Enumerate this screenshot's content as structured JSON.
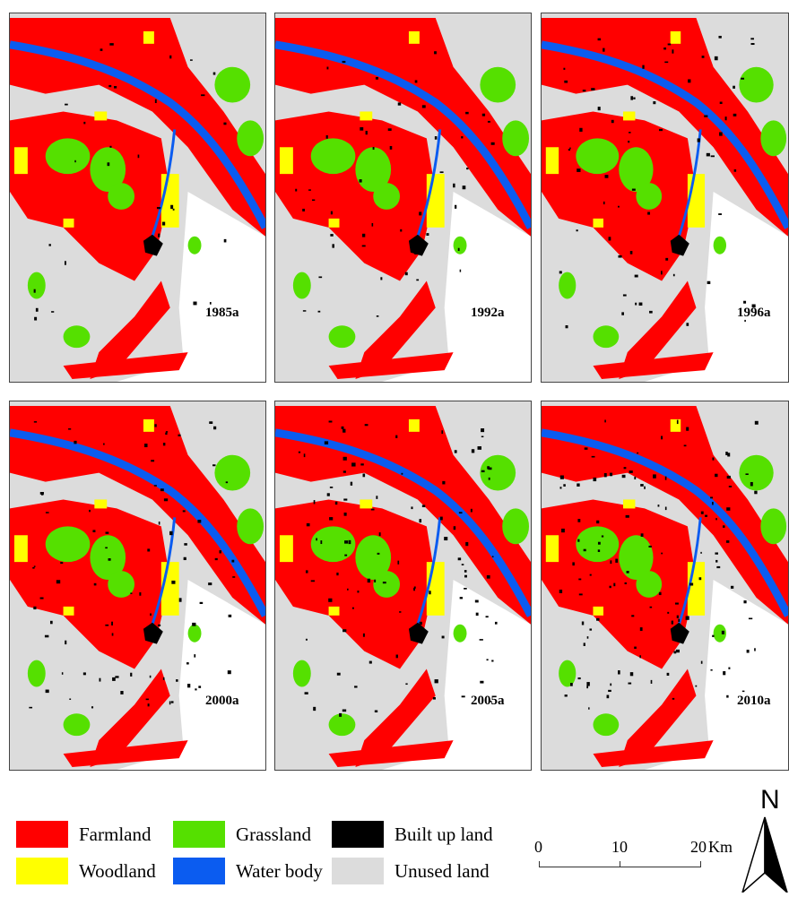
{
  "colors": {
    "farmland": "#ff0000",
    "woodland": "#ffff00",
    "grassland": "#55e000",
    "water_body": "#0b5cf0",
    "built_up_land": "#000000",
    "unused_land": "#dcdcdc"
  },
  "panels": [
    {
      "year": "1985a"
    },
    {
      "year": "1992a"
    },
    {
      "year": "1996a"
    },
    {
      "year": "2000a"
    },
    {
      "year": "2005a"
    },
    {
      "year": "2010a"
    }
  ],
  "legend": {
    "farmland": "Farmland",
    "woodland": "Woodland",
    "grassland": "Grassland",
    "water_body": "Water body",
    "built_up_land": "Built up land",
    "unused_land": "Unused land"
  },
  "scale_bar": {
    "tick0": "0",
    "tick1": "10",
    "tick2": "20",
    "unit": "Km"
  },
  "north_arrow": {
    "letter": "N"
  }
}
